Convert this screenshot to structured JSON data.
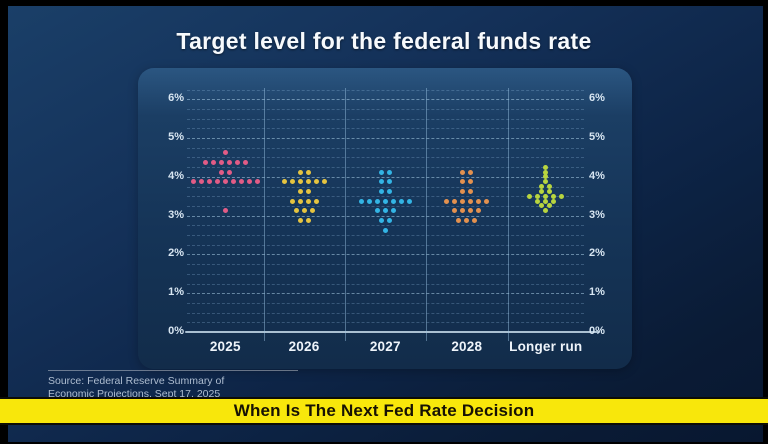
{
  "page": {
    "title": "Target level for the federal funds rate"
  },
  "source": {
    "line1": "Source: Federal Reserve Summary of",
    "line2": "Economic Projections, Sept 17, 2025"
  },
  "banner": {
    "text": "When Is The Next Fed Rate Decision",
    "background": "#f8e70b",
    "text_color": "#171204"
  },
  "chart_data": {
    "type": "scatter",
    "subtype": "fomc-dot-plot",
    "title": "Target level for the federal funds rate",
    "x_categories": [
      "2025",
      "2026",
      "2027",
      "2028",
      "Longer run"
    ],
    "y_axis": {
      "unit": "%",
      "min": 0,
      "max": 6,
      "tick_values": [
        6,
        5,
        4,
        3,
        2,
        1,
        0
      ],
      "tick_labels": [
        "6%",
        "5%",
        "4%",
        "3%",
        "2%",
        "1%",
        "0%"
      ],
      "minor_step": 0.25,
      "labels_on_both_sides": true
    },
    "grid": {
      "horizontal_dashed": true,
      "column_separators": true,
      "zero_axis_solid": true
    },
    "series": [
      {
        "name": "2025",
        "color": "#e25c86",
        "dots": [
          {
            "rate": 4.625,
            "count": 1
          },
          {
            "rate": 4.375,
            "count": 6
          },
          {
            "rate": 4.125,
            "count": 2
          },
          {
            "rate": 3.875,
            "count": 9
          },
          {
            "rate": 3.125,
            "count": 1
          }
        ]
      },
      {
        "name": "2026",
        "color": "#e6c440",
        "dots": [
          {
            "rate": 4.125,
            "count": 2
          },
          {
            "rate": 3.875,
            "count": 6
          },
          {
            "rate": 3.625,
            "count": 2
          },
          {
            "rate": 3.375,
            "count": 4
          },
          {
            "rate": 3.125,
            "count": 3
          },
          {
            "rate": 2.875,
            "count": 2
          }
        ]
      },
      {
        "name": "2027",
        "color": "#33b5e5",
        "dots": [
          {
            "rate": 4.125,
            "count": 2
          },
          {
            "rate": 3.875,
            "count": 2
          },
          {
            "rate": 3.625,
            "count": 2
          },
          {
            "rate": 3.375,
            "count": 7
          },
          {
            "rate": 3.125,
            "count": 3
          },
          {
            "rate": 2.875,
            "count": 2
          },
          {
            "rate": 2.625,
            "count": 1
          }
        ]
      },
      {
        "name": "2028",
        "color": "#e3914f",
        "dots": [
          {
            "rate": 4.125,
            "count": 2
          },
          {
            "rate": 3.875,
            "count": 2
          },
          {
            "rate": 3.625,
            "count": 2
          },
          {
            "rate": 3.375,
            "count": 6
          },
          {
            "rate": 3.125,
            "count": 4
          },
          {
            "rate": 2.875,
            "count": 3
          }
        ]
      },
      {
        "name": "Longer run",
        "color": "#b8d53f",
        "dots": [
          {
            "rate": 4.25,
            "count": 1
          },
          {
            "rate": 4.125,
            "count": 1
          },
          {
            "rate": 4.0,
            "count": 1
          },
          {
            "rate": 3.875,
            "count": 1
          },
          {
            "rate": 3.75,
            "count": 2
          },
          {
            "rate": 3.625,
            "count": 2
          },
          {
            "rate": 3.5,
            "count": 5
          },
          {
            "rate": 3.375,
            "count": 3
          },
          {
            "rate": 3.25,
            "count": 2
          },
          {
            "rate": 3.125,
            "count": 1
          }
        ]
      }
    ]
  }
}
